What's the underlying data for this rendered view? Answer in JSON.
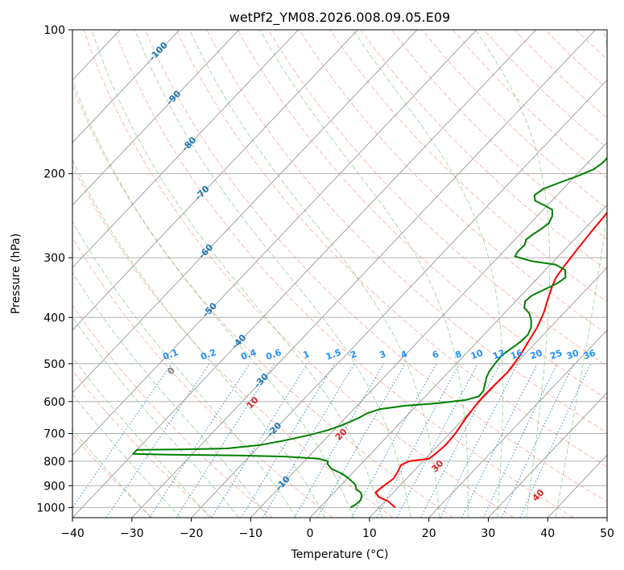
{
  "chart_data": {
    "type": "line",
    "title": "wetPf2_YM08.2026.008.09.05.E09",
    "xlabel": "Temperature (°C)",
    "ylabel": "Pressure (hPa)",
    "xlim": [
      -40,
      50
    ],
    "ylim": [
      1050,
      100
    ],
    "y_scale": "log",
    "x_ticks": [
      "−40",
      "−30",
      "−20",
      "−10",
      "0",
      "10",
      "20",
      "30",
      "40",
      "50"
    ],
    "y_ticks": [
      "100",
      "200",
      "300",
      "400",
      "500",
      "600",
      "700",
      "800",
      "900",
      "1000"
    ],
    "grid": true,
    "skew": "skew-T log-P",
    "colors": {
      "temperature": "#ff0000",
      "dewpoint": "#008000",
      "isotherm": "#999999",
      "dry_adiabat": "#fa8072",
      "moist_adiabat": "#2ca02c",
      "mixing_ratio": "#1f77b4",
      "isotherm_label": "#1f77b4",
      "dry_adiabat_label": "#d62728",
      "mixing_label": "#1e90ff"
    },
    "isotherm_labels": [
      {
        "t": -100,
        "text": "-100"
      },
      {
        "t": -90,
        "text": "-90"
      },
      {
        "t": -80,
        "text": "-80"
      },
      {
        "t": -70,
        "text": "-70"
      },
      {
        "t": -60,
        "text": "-60"
      },
      {
        "t": -50,
        "text": "-50"
      },
      {
        "t": -40,
        "text": "-40"
      },
      {
        "t": -30,
        "text": "-30"
      },
      {
        "t": -20,
        "text": "-20"
      },
      {
        "t": -10,
        "text": "-10"
      }
    ],
    "dry_adiabat_labels": [
      {
        "t": 0,
        "text": "0"
      },
      {
        "t": 10,
        "text": "10"
      },
      {
        "t": 20,
        "text": "20"
      },
      {
        "t": 30,
        "text": "30"
      },
      {
        "t": 40,
        "text": "40"
      }
    ],
    "mixing_ratio_labels": [
      "0.1",
      "0.2",
      "0.4",
      "0.6",
      "1",
      "1.5",
      "2",
      "3",
      "4",
      "6",
      "8",
      "10",
      "13",
      "16",
      "20",
      "25",
      "30",
      "36"
    ],
    "series": [
      {
        "name": "Temperature",
        "points": [
          [
            12.7,
            1000
          ],
          [
            10.5,
            970
          ],
          [
            8.2,
            950
          ],
          [
            7.0,
            930
          ],
          [
            7.3,
            900
          ],
          [
            7.8,
            870
          ],
          [
            7.4,
            840
          ],
          [
            6.9,
            815
          ],
          [
            7.6,
            800
          ],
          [
            9.2,
            795
          ],
          [
            10.6,
            790
          ],
          [
            10.9,
            770
          ],
          [
            11.2,
            740
          ],
          [
            11.0,
            700
          ],
          [
            10.3,
            650
          ],
          [
            9.8,
            600
          ],
          [
            9.8,
            560
          ],
          [
            10.0,
            520
          ],
          [
            9.4,
            480
          ],
          [
            8.6,
            450
          ],
          [
            7.8,
            420
          ],
          [
            6.5,
            390
          ],
          [
            5.0,
            365
          ],
          [
            3.8,
            345
          ],
          [
            3.0,
            330
          ],
          [
            2.6,
            315
          ],
          [
            2.3,
            300
          ],
          [
            2.0,
            285
          ],
          [
            1.6,
            265
          ],
          [
            1.3,
            245
          ],
          [
            0.8,
            225
          ],
          [
            0.1,
            205
          ],
          [
            -0.4,
            190
          ],
          [
            -1.3,
            183
          ],
          [
            -2.6,
            178
          ],
          [
            -4.3,
            172
          ],
          [
            -6.4,
            165
          ],
          [
            -8.4,
            158
          ],
          [
            -9.6,
            150
          ],
          [
            -11.5,
            142
          ],
          [
            -13.1,
            133
          ],
          [
            -14.1,
            125
          ],
          [
            -15.9,
            115
          ],
          [
            -17.6,
            108
          ],
          [
            -19.2,
            100
          ]
        ]
      },
      {
        "name": "Dewpoint",
        "points": [
          [
            5.2,
            1000
          ],
          [
            5.6,
            985
          ],
          [
            5.7,
            965
          ],
          [
            5.2,
            945
          ],
          [
            4.5,
            930
          ],
          [
            3.2,
            915
          ],
          [
            2.3,
            895
          ],
          [
            0.3,
            870
          ],
          [
            -1.6,
            850
          ],
          [
            -4.2,
            830
          ],
          [
            -5.7,
            810
          ],
          [
            -6.0,
            800
          ],
          [
            -8.0,
            790
          ],
          [
            -14,
            782
          ],
          [
            -22,
            778
          ],
          [
            -34,
            775
          ],
          [
            -40,
            772
          ],
          [
            -40,
            757
          ],
          [
            -33,
            756
          ],
          [
            -25,
            752
          ],
          [
            -20,
            740
          ],
          [
            -16.5,
            723
          ],
          [
            -13.3,
            705
          ],
          [
            -11.2,
            690
          ],
          [
            -9.6,
            675
          ],
          [
            -8.5,
            660
          ],
          [
            -7.7,
            648
          ],
          [
            -7.1,
            635
          ],
          [
            -5.6,
            622
          ],
          [
            -1.8,
            612
          ],
          [
            3.2,
            605
          ],
          [
            7.5,
            595
          ],
          [
            9.0,
            585
          ],
          [
            8.9,
            570
          ],
          [
            8.0,
            550
          ],
          [
            7.3,
            535
          ],
          [
            6.8,
            520
          ],
          [
            6.5,
            500
          ],
          [
            6.3,
            480
          ],
          [
            6.8,
            465
          ],
          [
            7.3,
            450
          ],
          [
            7.4,
            435
          ],
          [
            6.8,
            420
          ],
          [
            5.6,
            405
          ],
          [
            4.2,
            392
          ],
          [
            2.5,
            382
          ],
          [
            1.6,
            370
          ],
          [
            1.8,
            360
          ],
          [
            2.9,
            350
          ],
          [
            4.1,
            340
          ],
          [
            4.6,
            330
          ],
          [
            3.3,
            318
          ],
          [
            0.8,
            310
          ],
          [
            -3.7,
            305
          ],
          [
            -7.3,
            298
          ],
          [
            -7.6,
            291
          ],
          [
            -7.5,
            282
          ],
          [
            -8.1,
            275
          ],
          [
            -7.8,
            268
          ],
          [
            -7.3,
            262
          ],
          [
            -6.9,
            254
          ],
          [
            -7.5,
            245
          ],
          [
            -8.5,
            238
          ],
          [
            -10.5,
            233
          ],
          [
            -12.8,
            228
          ],
          [
            -13.8,
            222
          ],
          [
            -13.3,
            215
          ],
          [
            -11.6,
            209
          ],
          [
            -9.5,
            202
          ],
          [
            -8.0,
            196
          ],
          [
            -7.5,
            190
          ],
          [
            -7.5,
            183
          ],
          [
            -8.5,
            176
          ],
          [
            -9.8,
            168
          ],
          [
            -10.3,
            162
          ],
          [
            -9.4,
            155
          ],
          [
            -8.3,
            148
          ],
          [
            -8.0,
            140
          ],
          [
            -8.3,
            132
          ],
          [
            -8.7,
            125
          ],
          [
            -10.4,
            118
          ],
          [
            -12.6,
            112
          ],
          [
            -14.0,
            108
          ],
          [
            -15.5,
            104
          ],
          [
            -16.9,
            100
          ]
        ]
      }
    ]
  }
}
